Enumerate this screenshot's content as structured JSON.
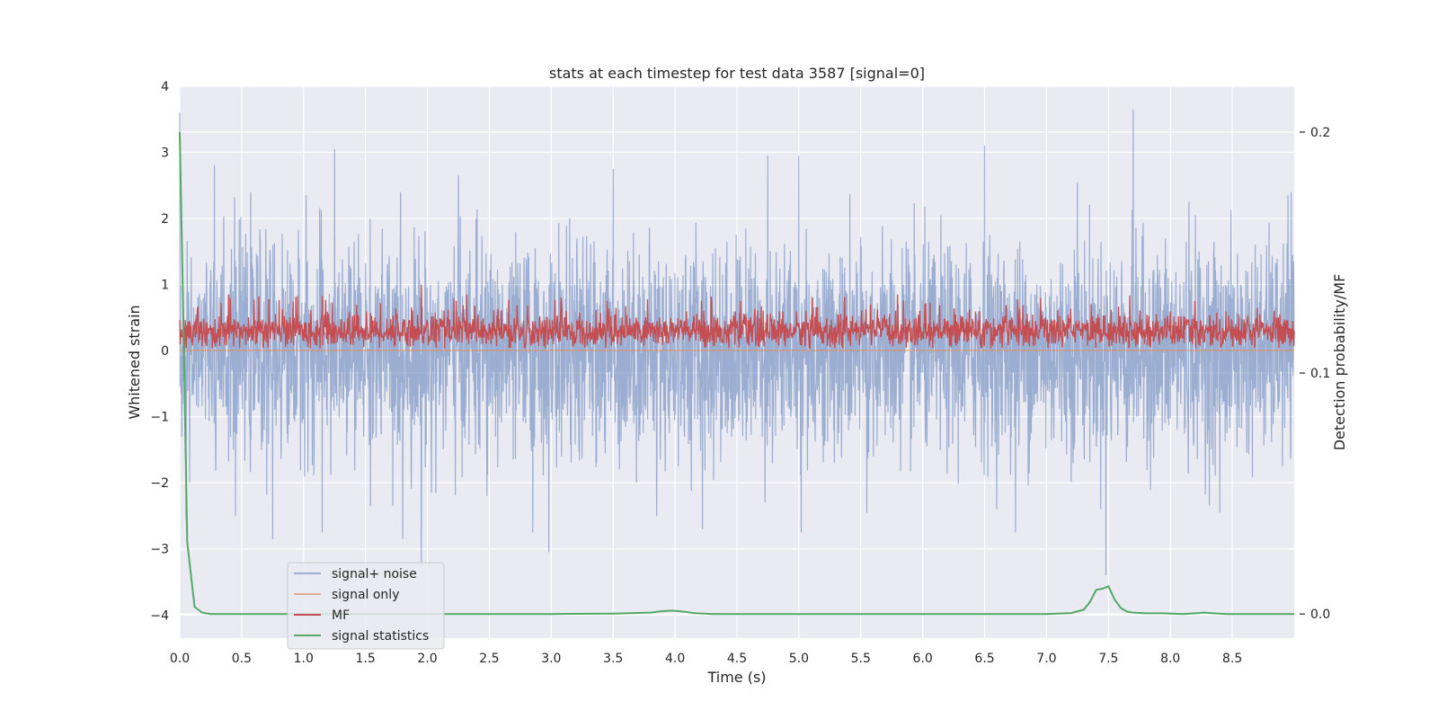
{
  "chart_data": {
    "type": "line",
    "title": "stats at each timestep for test data 3587 [signal=0]",
    "xlabel": "Time (s)",
    "ylabel": "Whitened strain",
    "y2label": "Detection probability/MF",
    "xlim": [
      0.0,
      9.0
    ],
    "ylim": [
      -4.35,
      4.0
    ],
    "y2lim": [
      -0.01,
      0.219
    ],
    "xticks": [
      "0.0",
      "0.5",
      "1.0",
      "1.5",
      "2.0",
      "2.5",
      "3.0",
      "3.5",
      "4.0",
      "4.5",
      "5.0",
      "5.5",
      "6.0",
      "6.5",
      "7.0",
      "7.5",
      "8.0",
      "8.5"
    ],
    "yticks": [
      "−4",
      "−3",
      "−2",
      "−1",
      "0",
      "1",
      "2",
      "3",
      "4"
    ],
    "y2ticks": [
      "0.0",
      "0.1",
      "0.2"
    ],
    "grid": true,
    "legend_position": "lower-left",
    "series": [
      {
        "name": "signal+ noise",
        "color": "#4c72b0",
        "axis": "left",
        "description_values": {
          "typical_range": [
            -2.0,
            2.0
          ],
          "max_peak": {
            "x": 7.7,
            "y": 3.65
          },
          "min_peak": {
            "x": 7.48,
            "y": -3.4
          },
          "samples": [
            [
              0.0,
              3.6
            ],
            [
              0.05,
              -2.55
            ],
            [
              0.08,
              -2.0
            ],
            [
              0.28,
              2.8
            ],
            [
              0.45,
              -2.5
            ],
            [
              0.75,
              -2.85
            ],
            [
              1.02,
              2.35
            ],
            [
              1.15,
              -2.75
            ],
            [
              1.25,
              3.05
            ],
            [
              1.72,
              -2.35
            ],
            [
              1.8,
              -2.85
            ],
            [
              1.95,
              -3.25
            ],
            [
              2.25,
              2.65
            ],
            [
              2.48,
              -2.2
            ],
            [
              2.85,
              -2.75
            ],
            [
              2.98,
              -3.05
            ],
            [
              3.5,
              2.75
            ],
            [
              3.85,
              -2.5
            ],
            [
              4.22,
              -2.7
            ],
            [
              4.75,
              2.95
            ],
            [
              5.0,
              2.95
            ],
            [
              5.02,
              -2.75
            ],
            [
              5.55,
              -2.45
            ],
            [
              6.5,
              3.1
            ],
            [
              6.75,
              -2.75
            ],
            [
              7.25,
              2.55
            ],
            [
              7.48,
              -3.4
            ],
            [
              7.7,
              3.65
            ],
            [
              8.15,
              2.25
            ],
            [
              8.4,
              -2.45
            ],
            [
              8.95,
              2.35
            ]
          ]
        }
      },
      {
        "name": "signal only",
        "color": "#dd8452",
        "axis": "left",
        "values_note": "flat at 0",
        "y": 0.0
      },
      {
        "name": "MF",
        "color": "#c44e52",
        "axis": "left",
        "typical_range": [
          0.0,
          0.7
        ],
        "max_peak": {
          "x": 1.95,
          "y": 1.0
        }
      },
      {
        "name": "signal statistics",
        "color": "#55a868",
        "axis": "right",
        "x": [
          0.0,
          0.03,
          0.06,
          0.12,
          0.18,
          0.25,
          0.5,
          1.0,
          2.0,
          3.0,
          3.5,
          3.8,
          3.9,
          3.97,
          4.05,
          4.15,
          4.3,
          5.0,
          6.0,
          7.0,
          7.2,
          7.3,
          7.35,
          7.4,
          7.45,
          7.5,
          7.55,
          7.6,
          7.65,
          7.7,
          7.8,
          7.95,
          8.1,
          8.2,
          8.27,
          8.35,
          8.45,
          8.6,
          9.0
        ],
        "y": [
          0.2,
          0.12,
          0.03,
          0.003,
          0.0006,
          0.0,
          0.0,
          0.0,
          0.0,
          0.0,
          0.0002,
          0.0006,
          0.0012,
          0.0014,
          0.0011,
          0.0004,
          0.0,
          0.0,
          0.0,
          0.0,
          0.0004,
          0.0018,
          0.005,
          0.01,
          0.0105,
          0.0115,
          0.006,
          0.0025,
          0.001,
          0.0006,
          0.0003,
          0.0003,
          0.0,
          0.0003,
          0.0006,
          0.0003,
          0.0,
          0.0,
          0.0
        ]
      }
    ]
  }
}
